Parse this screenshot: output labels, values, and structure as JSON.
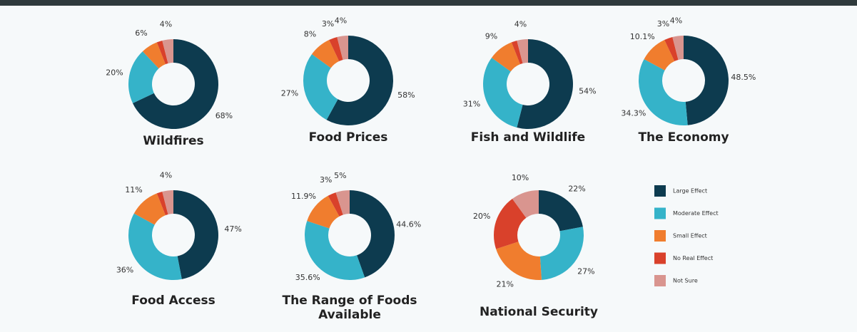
{
  "legend": {
    "items": [
      {
        "name": "Large Effect",
        "color": "#0d3b4f"
      },
      {
        "name": "Moderate Effect",
        "color": "#35b3c9"
      },
      {
        "name": "Small Effect",
        "color": "#f07d2e"
      },
      {
        "name": "No Real Effect",
        "color": "#d9412b"
      },
      {
        "name": "Not Sure",
        "color": "#d9958f"
      }
    ]
  },
  "chart_data": [
    {
      "type": "donut",
      "title": "Wildfires",
      "values": [
        68,
        20,
        6,
        2,
        4
      ],
      "value_labels": [
        "68%",
        "20%",
        "6%",
        null,
        "4%"
      ]
    },
    {
      "type": "donut",
      "title": "Food Prices",
      "values": [
        58,
        27,
        8,
        3,
        4
      ],
      "value_labels": [
        "58%",
        "27%",
        "8%",
        "3%",
        "4%"
      ]
    },
    {
      "type": "donut",
      "title": "Fish and Wildlife",
      "values": [
        54,
        31,
        9,
        2,
        4
      ],
      "value_labels": [
        "54%",
        "31%",
        "9%",
        null,
        "4%"
      ]
    },
    {
      "type": "donut",
      "title": "The Economy",
      "values": [
        48.5,
        34.3,
        10.1,
        3,
        4
      ],
      "value_labels": [
        "48.5%",
        "34.3%",
        "10.1%",
        "3%",
        "4%"
      ]
    },
    {
      "type": "donut",
      "title": "Food Access",
      "values": [
        47,
        36,
        11,
        2,
        4
      ],
      "value_labels": [
        "47%",
        "36%",
        "11%",
        null,
        "4%"
      ]
    },
    {
      "type": "donut",
      "title": "The Range of Foods Available",
      "values": [
        44.6,
        35.6,
        11.9,
        3,
        5
      ],
      "value_labels": [
        "44.6%",
        "35.6%",
        "11.9%",
        "3%",
        "5%"
      ]
    },
    {
      "type": "donut",
      "title": "National Security",
      "values": [
        22,
        27,
        21,
        20,
        10
      ],
      "value_labels": [
        "22%",
        "27%",
        "21%",
        "20%",
        "10%"
      ]
    }
  ]
}
